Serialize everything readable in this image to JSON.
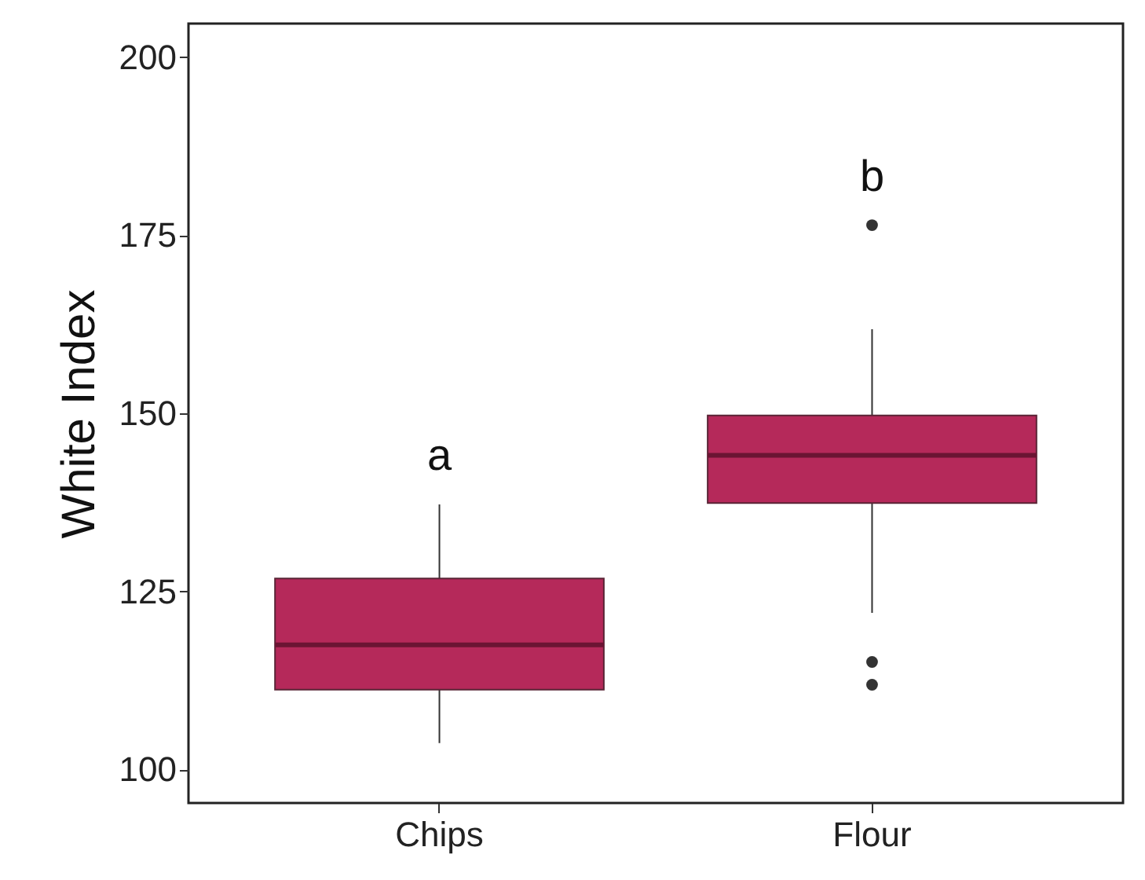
{
  "chart_data": {
    "type": "box",
    "ylabel": "White Index",
    "categories": [
      "Chips",
      "Flour"
    ],
    "color": "#b5295a",
    "boxes": [
      {
        "low": 103.7,
        "q1": 111.2,
        "median": 117.5,
        "q3": 126.8,
        "high": 137.2
      },
      {
        "low": 122,
        "q1": 137.4,
        "median": 144.1,
        "q3": 149.7,
        "high": 161.8,
        "outliers": [
          176.4,
          115.1,
          111.9
        ]
      }
    ],
    "ylim": [
      95.3,
      204.7
    ],
    "yticks": [
      100,
      125,
      150,
      175,
      200
    ],
    "grid": false,
    "annotations": [
      "a",
      "b"
    ]
  }
}
